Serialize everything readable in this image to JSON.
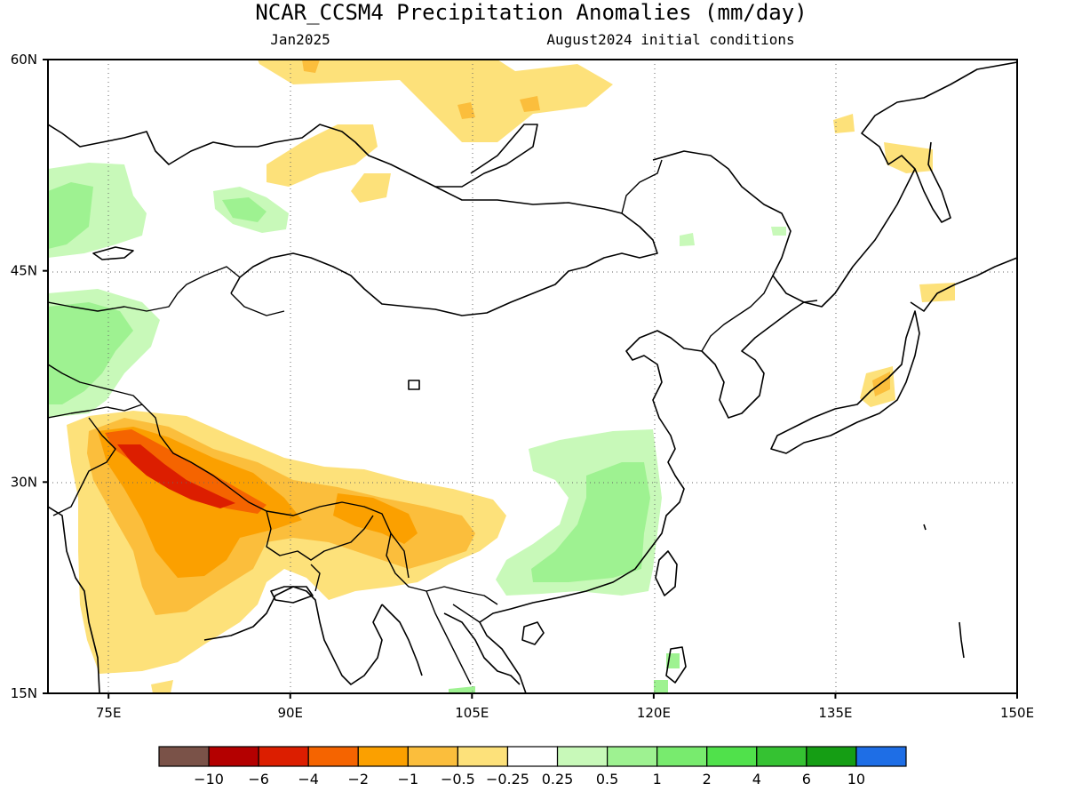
{
  "header": {
    "title": "NCAR_CCSM4 Precipitation Anomalies (mm/day)",
    "valid_month": "Jan2025",
    "init_conditions": "August2024 initial conditions"
  },
  "map": {
    "lon_range": [
      70,
      150
    ],
    "lat_range": [
      15,
      60
    ],
    "lat_ticks": [
      {
        "value": 60,
        "label": "60N"
      },
      {
        "value": 45,
        "label": "45N"
      },
      {
        "value": 30,
        "label": "30N"
      },
      {
        "value": 15,
        "label": "15N"
      }
    ],
    "lon_ticks": [
      {
        "value": 75,
        "label": "75E"
      },
      {
        "value": 90,
        "label": "90E"
      },
      {
        "value": 105,
        "label": "105E"
      },
      {
        "value": 120,
        "label": "120E"
      },
      {
        "value": 135,
        "label": "135E"
      },
      {
        "value": 150,
        "label": "150E"
      }
    ],
    "grid_lons": [
      75,
      90,
      105,
      120,
      135
    ],
    "grid_lats": [
      45,
      30
    ]
  },
  "colorbar": {
    "colors": [
      "#7a5248",
      "#b40000",
      "#dc1e00",
      "#f56400",
      "#fba000",
      "#fbbe3c",
      "#fde17a",
      "#ffffff",
      "#c8f9b9",
      "#9ef291",
      "#78eb6e",
      "#50e14b",
      "#35c232",
      "#159e14",
      "#1e6ee6"
    ],
    "labels": [
      "−10",
      "−6",
      "−4",
      "−2",
      "−1",
      "−0.5",
      "−0.25",
      "0.25",
      "0.5",
      "1",
      "2",
      "4",
      "6",
      "10"
    ]
  }
}
